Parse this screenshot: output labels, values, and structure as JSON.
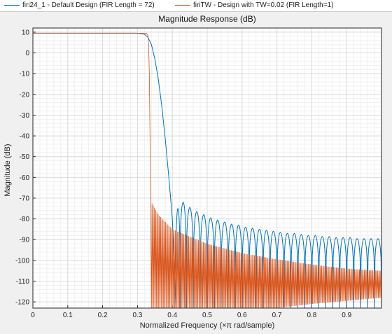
{
  "legend": {
    "items": [
      {
        "label": "firi24_1 - Default Design (FIR Length = 72)",
        "color": "#0072BD"
      },
      {
        "label": "firiTW - Design with TW=0.02 (FIR Length=1)",
        "color": "#D95319"
      }
    ]
  },
  "chart_data": {
    "type": "line",
    "title": "Magnitude Response (dB)",
    "xlabel": "Normalized Frequency (×π rad/sample)",
    "ylabel": "Magnitude (dB)",
    "xlim": [
      0,
      1
    ],
    "ylim": [
      -123,
      12
    ],
    "xticks": [
      0,
      0.1,
      0.2,
      0.3,
      0.4,
      0.5,
      0.6,
      0.7,
      0.8,
      0.9
    ],
    "xtick_labels": [
      "0",
      "0.1",
      "0.2",
      "0.3",
      "0.4",
      "0.5",
      "0.6",
      "0.7",
      "0.8",
      "0.9"
    ],
    "yticks": [
      10,
      0,
      -10,
      -20,
      -30,
      -40,
      -50,
      -60,
      -70,
      -80,
      -90,
      -100,
      -110,
      -120
    ],
    "ytick_labels": [
      "10",
      "0",
      "-10",
      "-20",
      "-30",
      "-40",
      "-50",
      "-60",
      "-70",
      "-80",
      "-90",
      "-100",
      "-110",
      "-120"
    ],
    "grid": true,
    "legend_position": "top",
    "series": [
      {
        "name": "firi24_1 - Default Design (FIR Length = 72)",
        "color": "#0072BD",
        "passband_level_db": 9.5,
        "band_edge": 0.33,
        "transition_points": [
          [
            0.3,
            9.5
          ],
          [
            0.32,
            9.0
          ],
          [
            0.33,
            7.5
          ],
          [
            0.34,
            4.0
          ],
          [
            0.35,
            -3.0
          ],
          [
            0.36,
            -13.0
          ],
          [
            0.37,
            -26.0
          ],
          [
            0.38,
            -42.0
          ],
          [
            0.39,
            -60.0
          ],
          [
            0.4,
            -80.0
          ],
          [
            0.405,
            -100.0
          ],
          [
            0.41,
            -123.0
          ]
        ],
        "sidelobe_peaks": [
          [
            0.414,
            -75.0
          ],
          [
            0.43,
            -72.0
          ],
          [
            0.45,
            -74.5
          ],
          [
            0.47,
            -76.5
          ],
          [
            0.49,
            -78.0
          ],
          [
            0.51,
            -79.5
          ],
          [
            0.53,
            -80.5
          ],
          [
            0.55,
            -81.5
          ],
          [
            0.57,
            -82.5
          ],
          [
            0.59,
            -83.0
          ],
          [
            0.61,
            -84.0
          ],
          [
            0.63,
            -84.5
          ],
          [
            0.65,
            -85.0
          ],
          [
            0.67,
            -85.5
          ],
          [
            0.69,
            -86.0
          ],
          [
            0.71,
            -86.5
          ],
          [
            0.73,
            -87.0
          ],
          [
            0.75,
            -87.0
          ],
          [
            0.77,
            -87.5
          ],
          [
            0.79,
            -88.0
          ],
          [
            0.81,
            -88.0
          ],
          [
            0.83,
            -88.5
          ],
          [
            0.85,
            -88.5
          ],
          [
            0.87,
            -89.0
          ],
          [
            0.89,
            -89.0
          ],
          [
            0.91,
            -89.0
          ],
          [
            0.93,
            -89.5
          ],
          [
            0.95,
            -89.5
          ],
          [
            0.97,
            -89.5
          ],
          [
            0.99,
            -89.5
          ]
        ],
        "null_level_db": -123
      },
      {
        "name": "firiTW - Design with TW=0.02 (FIR Length=1)",
        "color": "#D95319",
        "passband_level_db": 9.5,
        "band_edge": 0.33,
        "transition_points": [
          [
            0.326,
            9.5
          ],
          [
            0.33,
            8.5
          ],
          [
            0.332,
            4.0
          ],
          [
            0.334,
            -10.0
          ],
          [
            0.336,
            -40.0
          ],
          [
            0.338,
            -80.0
          ],
          [
            0.34,
            -123.0
          ]
        ],
        "stopband_envelope_top": [
          [
            0.34,
            -72.0
          ],
          [
            0.36,
            -78.0
          ],
          [
            0.4,
            -85.0
          ],
          [
            0.5,
            -92.0
          ],
          [
            0.6,
            -96.5
          ],
          [
            0.7,
            -99.5
          ],
          [
            0.8,
            -102.0
          ],
          [
            0.9,
            -104.0
          ],
          [
            1.0,
            -105.0
          ]
        ],
        "stopband_envelope_bottom": [
          [
            0.34,
            -123.0
          ],
          [
            0.7,
            -123.0
          ],
          [
            0.8,
            -121.0
          ],
          [
            1.0,
            -118.0
          ]
        ],
        "stopband_ripple_period": 0.0035
      }
    ]
  }
}
